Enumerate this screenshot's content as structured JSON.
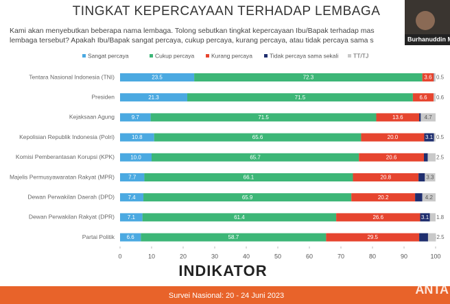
{
  "chart_data": {
    "type": "stacked_barh",
    "title": "TINGKAT KEPERCAYAAN TERHADAP LEMBAGA",
    "subtitle": [
      "Kami akan menyebutkan beberapa nama lembaga. Tolong sebutkan tingkat kepercayaan Ibu/Bapak terhadap mas",
      "lembaga tersebut? Apakah Ibu/Bapak sangat percaya, cukup percaya, kurang percaya, atau tidak percaya sama s"
    ],
    "categories": [
      "Tentara Nasional Indonesia (TNI)",
      "Presiden",
      "Kejaksaan Agung",
      "Kepolisian Republik Indonesia (Polri)",
      "Komisi Pemberantasan Korupsi (KPK)",
      "Majelis Permusyawaratan Rakyat (MPR)",
      "Dewan Perwakilan Daerah (DPD)",
      "Dewan Perwakilan Rakyat (DPR)",
      "Partai Politik"
    ],
    "series": [
      {
        "name": "Sangat percaya",
        "color": "#4ba9e1",
        "values": [
          23.5,
          21.3,
          9.7,
          10.8,
          10.0,
          7.7,
          7.4,
          7.1,
          6.6
        ],
        "value_labels": [
          "23.5",
          "21.3",
          "9.7",
          "10.8",
          "10.0",
          "7.7",
          "7.4",
          "7.1",
          "6.6"
        ]
      },
      {
        "name": "Cukup percaya",
        "color": "#3db677",
        "values": [
          72.3,
          71.5,
          71.5,
          65.6,
          65.7,
          66.1,
          65.9,
          61.4,
          58.7
        ],
        "value_labels": [
          "72.3",
          "71.5",
          "71.5",
          "65.6",
          "65.7",
          "66.1",
          "65.9",
          "61.4",
          "58.7"
        ]
      },
      {
        "name": "Kurang percaya",
        "color": "#e6452f",
        "values": [
          3.6,
          6.6,
          13.6,
          20.0,
          20.6,
          20.8,
          20.2,
          26.6,
          29.5
        ],
        "value_labels": [
          "3.6",
          "6.6",
          "13.6",
          "20.0",
          "20.6",
          "20.8",
          "20.2",
          "26.6",
          "29.5"
        ]
      },
      {
        "name": "Tidak percaya sama sekali",
        "color": "#1f2e6e",
        "values": [
          0.1,
          0.0,
          0.5,
          3.1,
          1.2,
          2.0,
          2.3,
          3.1,
          2.8
        ],
        "value_labels": [
          null,
          null,
          "0.5",
          "3.1",
          "1.2",
          "2.0",
          "2.3",
          "3.1",
          "2.8"
        ]
      },
      {
        "name": "TT/TJ",
        "color": "#c9c9c9",
        "values": [
          0.5,
          0.6,
          4.7,
          0.5,
          2.5,
          3.3,
          4.2,
          1.8,
          2.5
        ],
        "value_labels": [
          "0.5",
          "0.6",
          "4.7",
          "0.5",
          "2.5",
          "3.3",
          "4.2",
          "1.8",
          "2.5"
        ]
      }
    ],
    "xlim": [
      0,
      100
    ],
    "xticks": [
      0,
      10,
      20,
      30,
      40,
      50,
      60,
      70,
      80,
      90,
      100
    ],
    "logo": "INDIKATOR",
    "footer": "Survei Nasional: 20 - 24 Juni 2023",
    "webcam_label": "Burhanuddin M",
    "watermark": "ANTA"
  }
}
